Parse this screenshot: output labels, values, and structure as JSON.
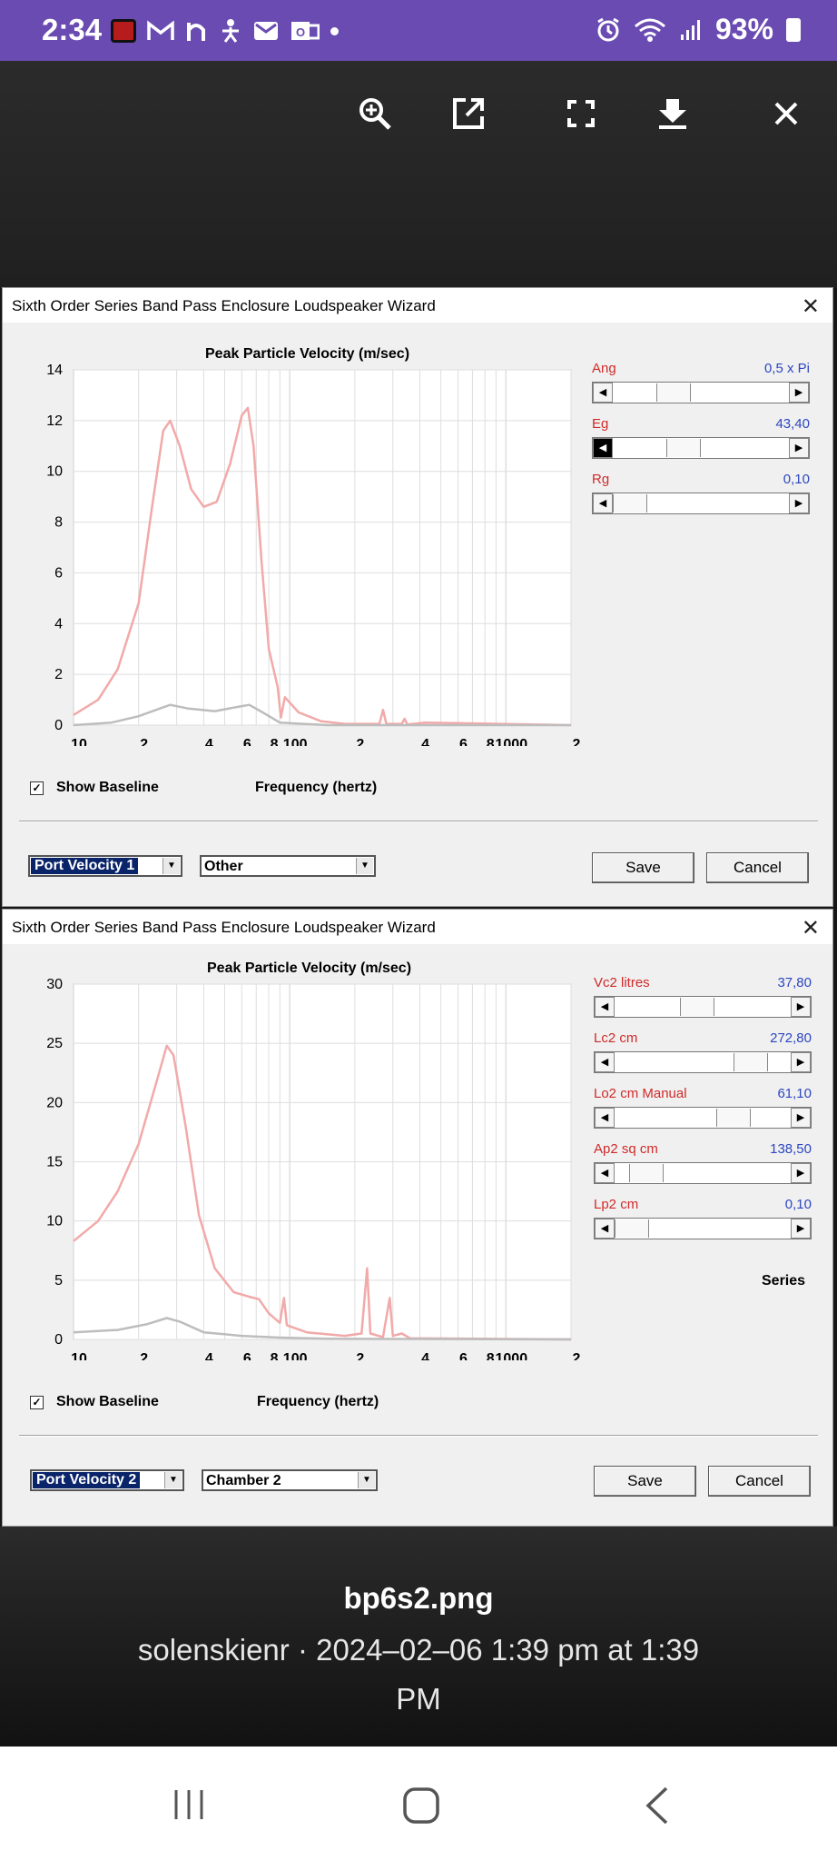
{
  "status_bar": {
    "time": "2:34",
    "battery": "93%"
  },
  "viewer_toolbar": {
    "icons": [
      "zoom-in-icon",
      "open-external-icon",
      "fullscreen-icon",
      "download-icon",
      "close-icon"
    ]
  },
  "window1": {
    "title": "Sixth Order Series Band Pass Enclosure Loudspeaker Wizard",
    "plot_title": "Peak Particle Velocity (m/sec)",
    "x_axis_label": "Frequency (hertz)",
    "show_baseline_label": "Show Baseline",
    "show_baseline_checked": true,
    "sliders": [
      {
        "label": "Ang",
        "value": "0,5 x Pi",
        "position": 0.3,
        "left_arrow_active": false
      },
      {
        "label": "Eg",
        "value": "43,40",
        "position": 0.37,
        "left_arrow_active": true
      },
      {
        "label": "Rg",
        "value": "0,10",
        "position": 0.0,
        "left_arrow_active": false
      }
    ],
    "combo1": "Port Velocity 1",
    "combo2": "Other",
    "save_label": "Save",
    "cancel_label": "Cancel",
    "chart_data": {
      "type": "line",
      "title": "Peak Particle Velocity (m/sec)",
      "xlabel": "Frequency (hertz)",
      "ylabel": "",
      "x_scale": "log",
      "xlim": [
        10,
        2000
      ],
      "ylim": [
        0,
        14
      ],
      "y_ticks": [
        0,
        2,
        4,
        6,
        8,
        10,
        12,
        14
      ],
      "x_tick_labels": [
        "10",
        "2",
        "4",
        "6",
        "8",
        "100",
        "2",
        "4",
        "6",
        "8",
        "1000",
        "2"
      ],
      "grid": true,
      "series": [
        {
          "color": "#f2a9a9",
          "points": [
            [
              10,
              0.4
            ],
            [
              13,
              1.0
            ],
            [
              16,
              2.2
            ],
            [
              20,
              4.8
            ],
            [
              23,
              8.5
            ],
            [
              26,
              11.6
            ],
            [
              28,
              12.0
            ],
            [
              31,
              11.0
            ],
            [
              35,
              9.3
            ],
            [
              40,
              8.6
            ],
            [
              46,
              8.8
            ],
            [
              53,
              10.3
            ],
            [
              60,
              12.2
            ],
            [
              64,
              12.5
            ],
            [
              68,
              11.0
            ],
            [
              74,
              6.5
            ],
            [
              80,
              3.0
            ],
            [
              88,
              1.5
            ],
            [
              91,
              0.3
            ],
            [
              95,
              1.1
            ],
            [
              110,
              0.5
            ],
            [
              140,
              0.15
            ],
            [
              180,
              0.05
            ],
            [
              260,
              0.05
            ],
            [
              270,
              0.6
            ],
            [
              280,
              0.05
            ],
            [
              330,
              0.05
            ],
            [
              340,
              0.25
            ],
            [
              350,
              0.02
            ],
            [
              420,
              0.1
            ],
            [
              2000,
              0
            ]
          ]
        },
        {
          "color": "#bdbdbd",
          "points": [
            [
              10,
              0.0
            ],
            [
              15,
              0.1
            ],
            [
              20,
              0.35
            ],
            [
              25,
              0.65
            ],
            [
              28,
              0.8
            ],
            [
              34,
              0.65
            ],
            [
              45,
              0.55
            ],
            [
              60,
              0.75
            ],
            [
              65,
              0.8
            ],
            [
              75,
              0.5
            ],
            [
              90,
              0.1
            ],
            [
              150,
              0
            ],
            [
              2000,
              0
            ]
          ]
        }
      ]
    }
  },
  "window2": {
    "title": "Sixth Order Series Band Pass Enclosure Loudspeaker Wizard",
    "plot_title": "Peak Particle Velocity (m/sec)",
    "x_axis_label": "Frequency (hertz)",
    "show_baseline_label": "Show Baseline",
    "show_baseline_checked": true,
    "sliders": [
      {
        "label": "Vc2  litres",
        "value": "37,80",
        "position": 0.45,
        "left_arrow_active": false
      },
      {
        "label": "Lc2  cm",
        "value": "272,80",
        "position": 0.82,
        "left_arrow_active": false
      },
      {
        "label": "Lo2  cm  Manual",
        "value": "61,10",
        "position": 0.7,
        "left_arrow_active": false
      },
      {
        "label": "Ap2  sq cm",
        "value": "138,50",
        "position": 0.1,
        "left_arrow_active": false
      },
      {
        "label": "Lp2  cm",
        "value": "0,10",
        "position": 0.0,
        "left_arrow_active": false
      }
    ],
    "series_label": "Series",
    "combo1": "Port Velocity 2",
    "combo2": "Chamber 2",
    "save_label": "Save",
    "cancel_label": "Cancel",
    "chart_data": {
      "type": "line",
      "title": "Peak Particle Velocity (m/sec)",
      "xlabel": "Frequency (hertz)",
      "ylabel": "",
      "x_scale": "log",
      "xlim": [
        10,
        2000
      ],
      "ylim": [
        0,
        30
      ],
      "y_ticks": [
        0,
        5,
        10,
        15,
        20,
        25,
        30
      ],
      "x_tick_labels": [
        "10",
        "2",
        "4",
        "6",
        "8",
        "100",
        "2",
        "4",
        "6",
        "8",
        "1000",
        "2"
      ],
      "grid": true,
      "series": [
        {
          "color": "#f2a9a9",
          "points": [
            [
              10,
              8.3
            ],
            [
              13,
              10.0
            ],
            [
              16,
              12.5
            ],
            [
              20,
              16.5
            ],
            [
              24,
              21.5
            ],
            [
              27,
              24.8
            ],
            [
              29,
              24.0
            ],
            [
              33,
              18.0
            ],
            [
              38,
              10.5
            ],
            [
              45,
              6.0
            ],
            [
              55,
              4.0
            ],
            [
              65,
              3.6
            ],
            [
              72,
              3.4
            ],
            [
              80,
              2.2
            ],
            [
              90,
              1.4
            ],
            [
              94,
              3.5
            ],
            [
              97,
              1.2
            ],
            [
              120,
              0.6
            ],
            [
              180,
              0.3
            ],
            [
              215,
              0.5
            ],
            [
              228,
              6.0
            ],
            [
              236,
              0.5
            ],
            [
              270,
              0.2
            ],
            [
              290,
              3.5
            ],
            [
              300,
              0.3
            ],
            [
              330,
              0.5
            ],
            [
              360,
              0.1
            ],
            [
              2000,
              0
            ]
          ]
        },
        {
          "color": "#bdbdbd",
          "points": [
            [
              10,
              0.6
            ],
            [
              16,
              0.8
            ],
            [
              22,
              1.3
            ],
            [
              27,
              1.8
            ],
            [
              31,
              1.5
            ],
            [
              40,
              0.6
            ],
            [
              60,
              0.3
            ],
            [
              90,
              0.15
            ],
            [
              150,
              0.05
            ],
            [
              2000,
              0
            ]
          ]
        }
      ]
    }
  },
  "caption": {
    "filename": "bp6s2.png",
    "meta_line1": "solenskienr · 2024–02–06 1:39 pm at 1:39",
    "meta_line2": "PM"
  },
  "nav_bar": {
    "icons": [
      "recents-icon",
      "home-icon",
      "back-icon"
    ]
  }
}
